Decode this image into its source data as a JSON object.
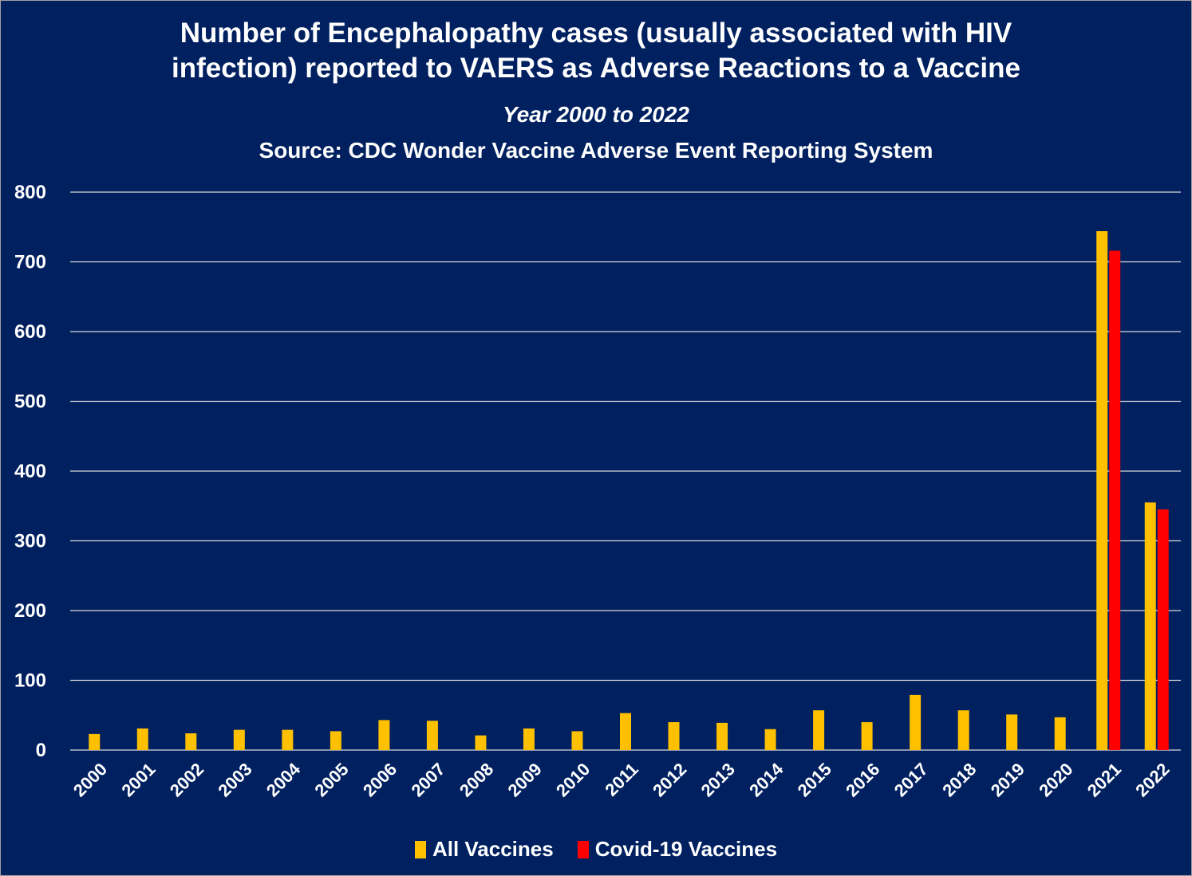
{
  "chart_data": {
    "type": "bar",
    "title": "Number of Encephalopathy cases (usually associated with HIV infection) reported to VAERS as Adverse Reactions to a Vaccine",
    "title_line1": "Number of Encephalopathy cases (usually associated with HIV",
    "title_line2": "infection) reported to VAERS as Adverse Reactions to a Vaccine",
    "subtitle": "Year 2000 to 2022",
    "source": "Source: CDC Wonder Vaccine Adverse Event Reporting System",
    "xlabel": "",
    "ylabel": "",
    "ylim": [
      0,
      800
    ],
    "yticks": [
      0,
      100,
      200,
      300,
      400,
      500,
      600,
      700,
      800
    ],
    "grid": true,
    "legend_position": "bottom",
    "categories": [
      "2000",
      "2001",
      "2002",
      "2003",
      "2004",
      "2005",
      "2006",
      "2007",
      "2008",
      "2009",
      "2010",
      "2011",
      "2012",
      "2013",
      "2014",
      "2015",
      "2016",
      "2017",
      "2018",
      "2019",
      "2020",
      "2021",
      "2022"
    ],
    "series": [
      {
        "name": "All Vaccines",
        "color": "#FFC000",
        "values": [
          23,
          31,
          24,
          29,
          29,
          27,
          43,
          42,
          21,
          31,
          27,
          53,
          40,
          39,
          30,
          57,
          40,
          79,
          57,
          51,
          47,
          744,
          355
        ]
      },
      {
        "name": "Covid-19 Vaccines",
        "color": "#FF0000",
        "values": [
          null,
          null,
          null,
          null,
          null,
          null,
          null,
          null,
          null,
          null,
          null,
          null,
          null,
          null,
          null,
          null,
          null,
          null,
          null,
          null,
          null,
          716,
          345
        ]
      }
    ]
  }
}
